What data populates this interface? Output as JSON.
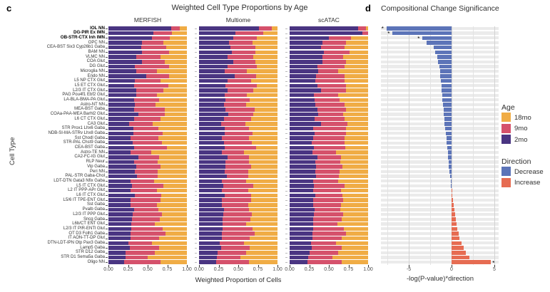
{
  "panel_c": {
    "letter": "c",
    "title": "Weighted Cell Type Proportions by Age",
    "xlabel": "Weighted Proportion of Cells",
    "ylabel": "Cell Type",
    "x_tick_labels": [
      "0.00",
      "0.25",
      "0.50",
      "0.75",
      "1.00"
    ]
  },
  "panel_d": {
    "letter": "d",
    "title": "Compositional Change Significance",
    "xlabel": "-log(P-value)*direction",
    "x_tick_labels": [
      "-5",
      "0",
      "5"
    ],
    "significance_marker": "*"
  },
  "legend": {
    "age_title": "Age",
    "age_items": [
      {
        "label": "18mo",
        "color": "#F0AC45"
      },
      {
        "label": "9mo",
        "color": "#D5516B"
      },
      {
        "label": "2mo",
        "color": "#4A3582"
      }
    ],
    "direction_title": "Direction",
    "direction_items": [
      {
        "label": "Decrease",
        "color": "#5C74B8"
      },
      {
        "label": "Increase",
        "color": "#E66C52"
      }
    ]
  },
  "chart_data": [
    {
      "type": "bar",
      "subtype": "stacked-horizontal",
      "title": "Weighted Cell Type Proportions by Age",
      "xlabel": "Weighted Proportion of Cells",
      "ylabel": "Cell Type",
      "xlim": [
        0,
        1
      ],
      "x_ticks": [
        0,
        0.25,
        0.5,
        0.75,
        1.0
      ],
      "x_tick_labels": [
        "0.00",
        "0.25",
        "0.50",
        "0.75",
        "1.00"
      ],
      "legend_title": "Age",
      "series_order": [
        "2mo",
        "9mo",
        "18mo"
      ],
      "colors": {
        "2mo": "#4A3582",
        "9mo": "#D5516B",
        "18mo": "#F0AC45"
      },
      "categories": [
        "IOL NN",
        "DG-PIR Ex IMN",
        "OB-STR-CTX Inh IMN",
        "OPC NN",
        "CEA-BST Six3 Cyp26b1 Gaba",
        "BAM NN",
        "VLMC NN",
        "COA Glut",
        "DG Glut",
        "Microglia NN",
        "Endo NN",
        "L5 NP CTX Glut",
        "L5 ET CTX Glut",
        "L2/3 IT CTX Glut",
        "PAG Pou4f1 Ebf2 Glut",
        "LA-BLA-BMA-PA Glut",
        "Astro-NT NN",
        "MEA-BST Gaba",
        "COAa-PAA-MEA Barhl2 Glut",
        "L6 CT CTX Glut",
        "CA3 Glut",
        "STR Prox1 Lhx6 Gaba",
        "NDB-SI-MA-STRv Lhx8 Gaba",
        "Sst Chodl Gaba",
        "STR-PAL Chst9 Gaba",
        "CEA-BST Gaba",
        "Astro-TE NN",
        "CA2-FC-IG Glut",
        "RLP Neur",
        "Vip Gaba",
        "Peri NN",
        "PAL-STR Gaba-Chol",
        "LDT-DTN Gata3 Nfix Gaba",
        "L5 IT CTX Glut",
        "L2 IT PPP-APr Glut",
        "L6 IT CTX Glut",
        "L5/6 IT TPE-ENT Glut",
        "Sst Gaba",
        "Pvalb Gaba",
        "L2/3 IT PPP Glut",
        "Sncg Gaba",
        "L6b/CT ENT Glut",
        "L2/3 IT PIR-ENTl Glut",
        "OT D3 Folh1 Gaba",
        "IT AON-TT-DP Glut",
        "DTN-LDT-IPN Otp Pax3 Gaba",
        "Lamp5 Gaba",
        "STR D12 Gaba",
        "STR D1 Sema5a Gaba",
        "Oligo NN"
      ],
      "bold_categories": [
        "IOL NN",
        "DG-PIR Ex IMN",
        "OB-STR-CTX Inh IMN"
      ],
      "facets": [
        {
          "name": "MERFISH",
          "values": [
            [
              0.8,
              0.11,
              0.09
            ],
            [
              0.57,
              0.24,
              0.19
            ],
            [
              0.55,
              0.23,
              0.22
            ],
            [
              0.43,
              0.27,
              0.3
            ],
            [
              0.42,
              0.32,
              0.26
            ],
            [
              0.43,
              0.34,
              0.23
            ],
            [
              0.35,
              0.31,
              0.34
            ],
            [
              0.43,
              0.29,
              0.28
            ],
            [
              0.34,
              0.43,
              0.23
            ],
            [
              0.35,
              0.27,
              0.38
            ],
            [
              0.48,
              0.29,
              0.23
            ],
            [
              0.34,
              0.32,
              0.34
            ],
            [
              0.33,
              0.43,
              0.24
            ],
            [
              0.35,
              0.35,
              0.3
            ],
            [
              0.35,
              0.27,
              0.38
            ],
            [
              0.33,
              0.32,
              0.35
            ],
            [
              0.34,
              0.26,
              0.4
            ],
            [
              0.33,
              0.39,
              0.28
            ],
            [
              0.38,
              0.34,
              0.28
            ],
            [
              0.33,
              0.33,
              0.34
            ],
            [
              0.26,
              0.3,
              0.44
            ],
            [
              0.32,
              0.32,
              0.36
            ],
            [
              0.32,
              0.37,
              0.31
            ],
            [
              0.28,
              0.36,
              0.36
            ],
            [
              0.31,
              0.37,
              0.32
            ],
            [
              0.33,
              0.42,
              0.25
            ],
            [
              0.28,
              0.27,
              0.45
            ],
            [
              0.38,
              0.27,
              0.35
            ],
            [
              0.33,
              0.3,
              0.37
            ],
            [
              0.35,
              0.31,
              0.34
            ],
            [
              0.34,
              0.29,
              0.37
            ],
            [
              0.36,
              0.27,
              0.37
            ],
            [
              0.28,
              0.3,
              0.42
            ],
            [
              0.3,
              0.4,
              0.3
            ],
            [
              0.28,
              0.34,
              0.38
            ],
            [
              0.34,
              0.33,
              0.33
            ],
            [
              0.28,
              0.38,
              0.34
            ],
            [
              0.28,
              0.34,
              0.38
            ],
            [
              0.33,
              0.31,
              0.36
            ],
            [
              0.31,
              0.37,
              0.32
            ],
            [
              0.3,
              0.35,
              0.35
            ],
            [
              0.29,
              0.3,
              0.41
            ],
            [
              0.29,
              0.4,
              0.31
            ],
            [
              0.28,
              0.45,
              0.27
            ],
            [
              0.28,
              0.37,
              0.35
            ],
            [
              0.25,
              0.3,
              0.45
            ],
            [
              0.27,
              0.38,
              0.35
            ],
            [
              0.22,
              0.37,
              0.41
            ],
            [
              0.22,
              0.28,
              0.5
            ],
            [
              0.2,
              0.46,
              0.34
            ]
          ]
        },
        {
          "name": "Multiome",
          "values": [
            [
              0.76,
              0.17,
              0.07
            ],
            [
              0.46,
              0.36,
              0.18
            ],
            [
              0.44,
              0.3,
              0.26
            ],
            [
              0.38,
              0.3,
              0.32
            ],
            [
              0.4,
              0.32,
              0.28
            ],
            [
              0.42,
              0.3,
              0.28
            ],
            [
              0.36,
              0.33,
              0.31
            ],
            [
              0.44,
              0.28,
              0.28
            ],
            [
              0.36,
              0.38,
              0.26
            ],
            [
              0.33,
              0.28,
              0.39
            ],
            [
              0.45,
              0.28,
              0.27
            ],
            [
              0.36,
              0.3,
              0.34
            ],
            [
              0.34,
              0.4,
              0.26
            ],
            [
              0.36,
              0.33,
              0.31
            ],
            [
              0.33,
              0.28,
              0.39
            ],
            [
              0.34,
              0.31,
              0.35
            ],
            [
              0.32,
              0.28,
              0.4
            ],
            [
              0.34,
              0.37,
              0.29
            ],
            [
              0.37,
              0.32,
              0.31
            ],
            [
              0.32,
              0.34,
              0.34
            ],
            [
              0.28,
              0.31,
              0.41
            ],
            [
              0.33,
              0.31,
              0.36
            ],
            [
              0.33,
              0.35,
              0.32
            ],
            [
              0.29,
              0.35,
              0.36
            ],
            [
              0.32,
              0.35,
              0.33
            ],
            [
              0.33,
              0.4,
              0.27
            ],
            [
              0.29,
              0.28,
              0.43
            ],
            [
              0.36,
              0.28,
              0.36
            ],
            [
              0.34,
              0.3,
              0.36
            ],
            [
              0.34,
              0.32,
              0.34
            ],
            [
              0.33,
              0.3,
              0.37
            ],
            [
              0.35,
              0.28,
              0.37
            ],
            [
              0.29,
              0.31,
              0.4
            ],
            [
              0.31,
              0.38,
              0.31
            ],
            [
              0.29,
              0.34,
              0.37
            ],
            [
              0.33,
              0.33,
              0.34
            ],
            [
              0.29,
              0.37,
              0.34
            ],
            [
              0.29,
              0.34,
              0.37
            ],
            [
              0.32,
              0.32,
              0.36
            ],
            [
              0.31,
              0.36,
              0.33
            ],
            [
              0.3,
              0.35,
              0.35
            ],
            [
              0.3,
              0.3,
              0.4
            ],
            [
              0.3,
              0.38,
              0.32
            ],
            [
              0.29,
              0.42,
              0.29
            ],
            [
              0.29,
              0.36,
              0.35
            ],
            [
              0.26,
              0.31,
              0.43
            ],
            [
              0.28,
              0.37,
              0.35
            ],
            [
              0.24,
              0.36,
              0.4
            ],
            [
              0.23,
              0.3,
              0.47
            ],
            [
              0.22,
              0.42,
              0.36
            ]
          ]
        },
        {
          "name": "scATAC",
          "values": [
            [
              0.87,
              0.1,
              0.03
            ],
            [
              0.93,
              0.07,
              0.0
            ],
            [
              0.5,
              0.28,
              0.22
            ],
            [
              0.42,
              0.3,
              0.28
            ],
            [
              0.4,
              0.3,
              0.3
            ],
            [
              0.44,
              0.32,
              0.24
            ],
            [
              0.42,
              0.26,
              0.32
            ],
            [
              0.42,
              0.3,
              0.28
            ],
            [
              0.35,
              0.35,
              0.3
            ],
            [
              0.36,
              0.26,
              0.38
            ],
            [
              0.34,
              0.36,
              0.3
            ],
            [
              0.33,
              0.37,
              0.3
            ],
            [
              0.35,
              0.37,
              0.28
            ],
            [
              0.4,
              0.32,
              0.28
            ],
            [
              0.31,
              0.31,
              0.38
            ],
            [
              0.32,
              0.32,
              0.36
            ],
            [
              0.33,
              0.37,
              0.3
            ],
            [
              0.35,
              0.37,
              0.28
            ],
            [
              0.36,
              0.32,
              0.32
            ],
            [
              0.32,
              0.38,
              0.3
            ],
            [
              0.4,
              0.34,
              0.26
            ],
            [
              0.3,
              0.42,
              0.28
            ],
            [
              0.32,
              0.4,
              0.28
            ],
            [
              0.3,
              0.4,
              0.3
            ],
            [
              0.28,
              0.42,
              0.3
            ],
            [
              0.31,
              0.4,
              0.29
            ],
            [
              0.29,
              0.3,
              0.41
            ],
            [
              0.35,
              0.3,
              0.35
            ],
            [
              0.33,
              0.32,
              0.35
            ],
            [
              0.34,
              0.33,
              0.33
            ],
            [
              0.33,
              0.31,
              0.36
            ],
            [
              0.34,
              0.29,
              0.37
            ],
            [
              0.3,
              0.32,
              0.38
            ],
            [
              0.31,
              0.39,
              0.3
            ],
            [
              0.3,
              0.35,
              0.35
            ],
            [
              0.33,
              0.34,
              0.33
            ],
            [
              0.3,
              0.38,
              0.32
            ],
            [
              0.3,
              0.35,
              0.35
            ],
            [
              0.32,
              0.33,
              0.35
            ],
            [
              0.31,
              0.37,
              0.32
            ],
            [
              0.3,
              0.36,
              0.34
            ],
            [
              0.3,
              0.31,
              0.39
            ],
            [
              0.3,
              0.39,
              0.31
            ],
            [
              0.29,
              0.43,
              0.28
            ],
            [
              0.29,
              0.37,
              0.34
            ],
            [
              0.27,
              0.32,
              0.41
            ],
            [
              0.28,
              0.38,
              0.34
            ],
            [
              0.25,
              0.37,
              0.38
            ],
            [
              0.24,
              0.31,
              0.45
            ],
            [
              0.23,
              0.43,
              0.34
            ]
          ]
        }
      ]
    },
    {
      "type": "bar",
      "subtype": "horizontal-diverging",
      "title": "Compositional Change Significance",
      "xlabel": "-log(P-value)*direction",
      "xlim": [
        -8.5,
        5.6
      ],
      "x_ticks": [
        -5,
        0,
        5
      ],
      "x_tick_labels": [
        "-5",
        "0",
        "5"
      ],
      "minor_x_ticks": [
        -7.5,
        -2.5,
        2.5
      ],
      "legend_title": "Direction",
      "colors": {
        "Decrease": "#5C74B8",
        "Increase": "#E66C52"
      },
      "values": [
        -7.6,
        -6.9,
        -3.4,
        -2.9,
        -2.1,
        -1.9,
        -1.7,
        -1.55,
        -1.45,
        -1.35,
        -1.3,
        -1.25,
        -1.2,
        -1.15,
        -1.1,
        -1.05,
        -1.0,
        -0.95,
        -0.9,
        -0.85,
        -0.8,
        -0.75,
        -0.7,
        -0.62,
        -0.55,
        -0.5,
        -0.45,
        -0.4,
        -0.35,
        -0.3,
        -0.25,
        -0.18,
        -0.12,
        -0.06,
        0.05,
        0.1,
        0.16,
        0.22,
        0.3,
        0.38,
        0.46,
        0.55,
        0.65,
        0.8,
        0.95,
        1.15,
        1.4,
        1.7,
        2.1,
        4.6
      ],
      "significant_indices": [
        0,
        1,
        2,
        49
      ]
    }
  ]
}
